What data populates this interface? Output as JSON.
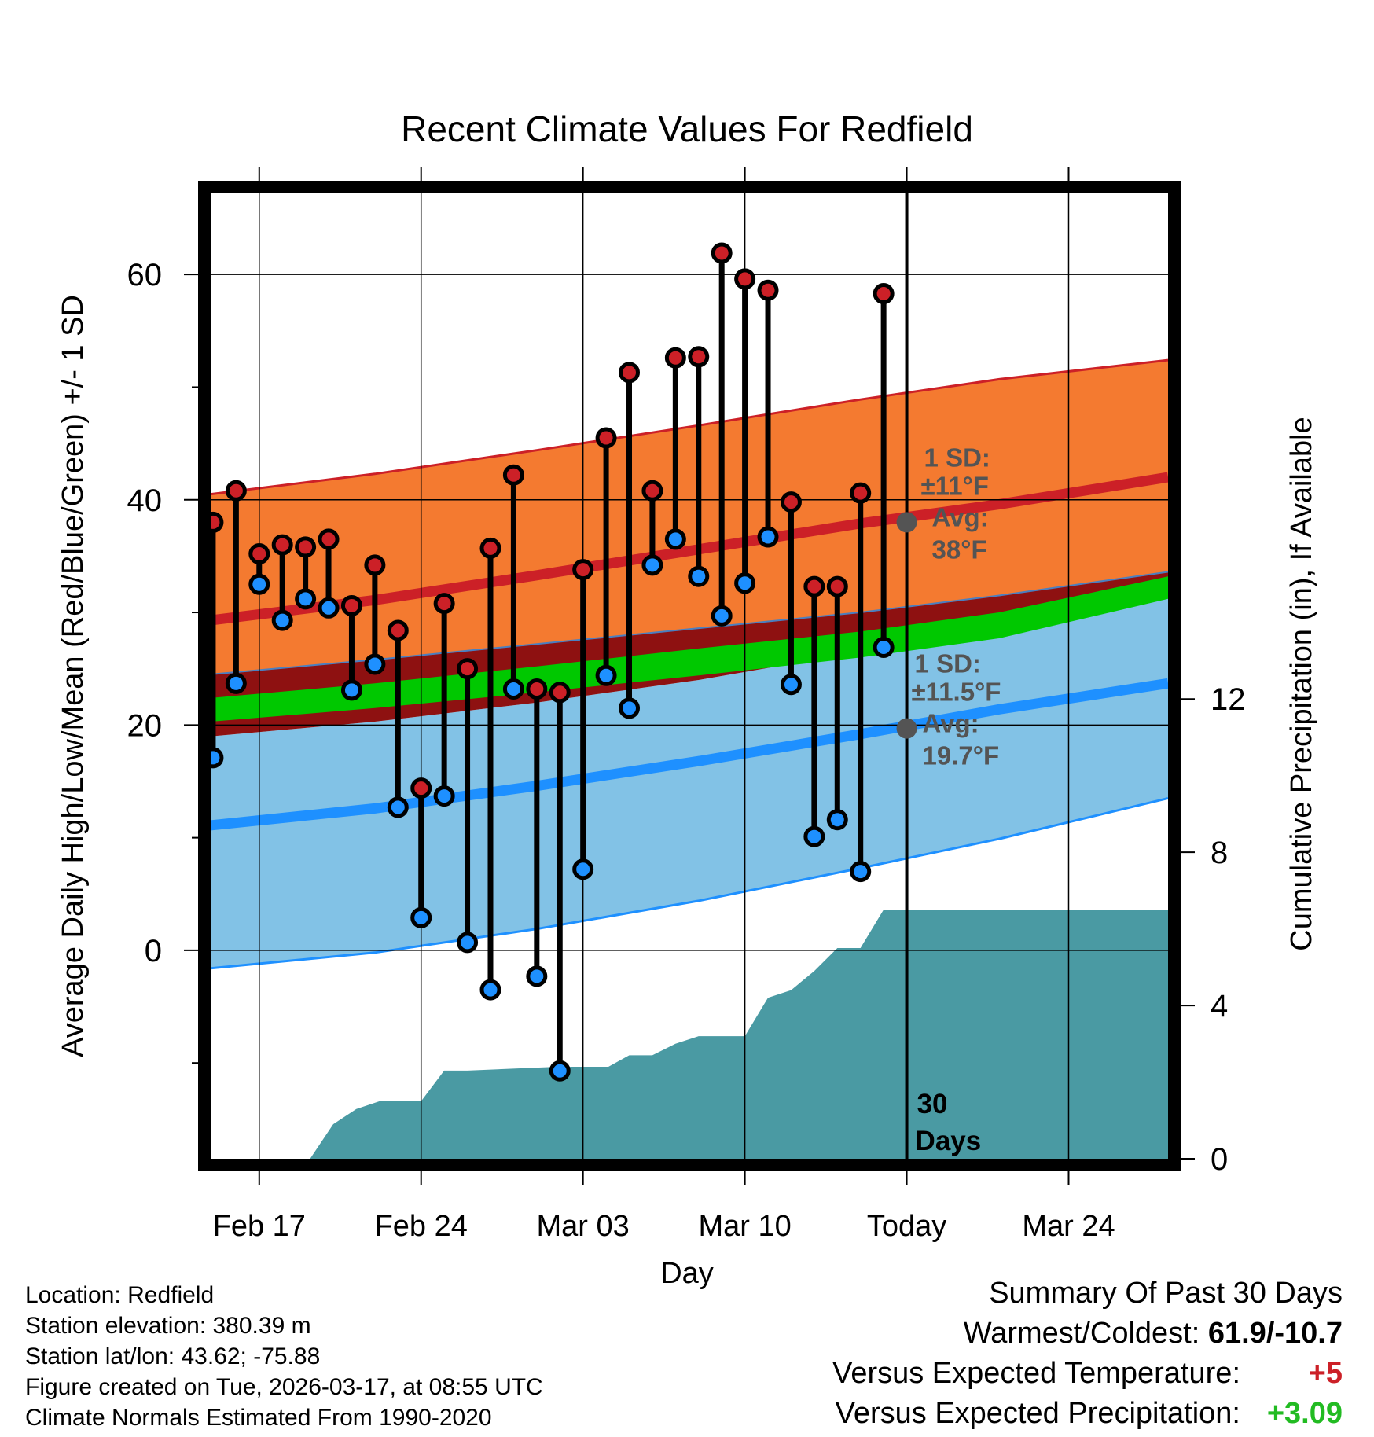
{
  "chart_data": {
    "type": "range-dot",
    "title": "Recent Climate Values For Redfield",
    "xlabel": "Day",
    "ylabel": "Average Daily High/Low/Mean (Red/Blue/Green) +/- 1 SD",
    "y2label": "Cumulative Precipitation (in), If Available",
    "xlim": [
      -2.1,
      39.3
    ],
    "ylim": [
      -18.5,
      67.2
    ],
    "y2lim": [
      0,
      25.2
    ],
    "xticks": [
      {
        "x": 0,
        "label": "Feb 17"
      },
      {
        "x": 7,
        "label": "Feb 24"
      },
      {
        "x": 14,
        "label": "Mar 03"
      },
      {
        "x": 21,
        "label": "Mar 10"
      },
      {
        "x": 28,
        "label": "Today"
      },
      {
        "x": 35,
        "label": "Mar 24"
      }
    ],
    "yticks": [
      0,
      20,
      40,
      60
    ],
    "y2ticks": [
      0,
      4,
      8,
      12
    ],
    "days": [
      -2,
      -1,
      0,
      1,
      2,
      3,
      4,
      5,
      6,
      7,
      8,
      9,
      10,
      11,
      12,
      13,
      14,
      15,
      16,
      17,
      18,
      19,
      20,
      21,
      22,
      23,
      24,
      25,
      26,
      27
    ],
    "highs": [
      38,
      40.8,
      35.2,
      36,
      35.8,
      36.5,
      30.6,
      34.2,
      28.4,
      14.4,
      30.8,
      25,
      35.7,
      42.2,
      23.2,
      22.9,
      33.8,
      45.5,
      51.3,
      40.8,
      52.6,
      52.7,
      61.9,
      59.6,
      58.6,
      39.8,
      32.3,
      32.3,
      40.6,
      58.3
    ],
    "lows": [
      17.1,
      23.7,
      32.5,
      29.3,
      31.2,
      30.4,
      23.1,
      25.4,
      12.7,
      2.9,
      13.7,
      0.7,
      -3.5,
      23.2,
      -2.3,
      -10.7,
      7.2,
      24.4,
      21.5,
      34.2,
      36.5,
      33.2,
      29.7,
      32.6,
      36.7,
      23.6,
      10.1,
      11.6,
      7.0,
      26.9
    ],
    "normals": {
      "x": [
        -2.1,
        5,
        12,
        19,
        26,
        32,
        39.3
      ],
      "high_mean": [
        29.3,
        31.1,
        33.3,
        35.6,
        37.9,
        39.6,
        42
      ],
      "high_upper": [
        40.5,
        42.3,
        44.4,
        46.6,
        48.9,
        50.7,
        52.4
      ],
      "high_lower": [
        24.5,
        25.8,
        27.2,
        28.6,
        30.0,
        31.5,
        33.6
      ],
      "mean_upper": [
        22.4,
        23.7,
        25.2,
        26.8,
        28.3,
        30.0,
        33.2
      ],
      "mean_lower": [
        20.3,
        21.5,
        22.9,
        24.4,
        26.0,
        27.7,
        31.2
      ],
      "low_upper": [
        19.0,
        20.3,
        22.0,
        24.0,
        26.5,
        28.8,
        31.3
      ],
      "low_mean": [
        11.1,
        12.6,
        14.6,
        16.8,
        19.2,
        21.4,
        23.7
      ],
      "low_lower": [
        -1.6,
        -0.2,
        1.9,
        4.4,
        7.3,
        9.9,
        13.5
      ]
    },
    "precip": {
      "x": [
        -2.1,
        2.2,
        3.2,
        4.2,
        5.2,
        6.1,
        7,
        8,
        9,
        12.9,
        14,
        15.1,
        16,
        17,
        18,
        19,
        20,
        21,
        22,
        23,
        24,
        25,
        26,
        27,
        39.3
      ],
      "y": [
        0,
        0,
        0.9,
        1.3,
        1.5,
        1.5,
        1.5,
        2.3,
        2.3,
        2.4,
        2.4,
        2.4,
        2.7,
        2.7,
        3.0,
        3.2,
        3.2,
        3.2,
        4.2,
        4.4,
        4.9,
        5.5,
        5.5,
        6.5,
        6.5
      ]
    },
    "today_x": 28,
    "today_marker_label": [
      "30",
      "Days"
    ],
    "high_normal_today": 38.0,
    "low_normal_today": 19.7,
    "high_sd_label": [
      "1 SD:",
      "±11°F",
      "Avg:",
      "38°F"
    ],
    "low_sd_label": [
      "1 SD:",
      "±11.5°F",
      "Avg:",
      "19.7°F"
    ]
  },
  "colors": {
    "high": "#cc2027",
    "low": "#1e90ff",
    "high_band": "#f47a30",
    "low_band": "#82c2e6",
    "overlap": "#8e1111",
    "mean_band": "#00c800",
    "precip": "#4a9aa3",
    "annot": "#545454",
    "positive_temp": "#cc2027",
    "positive_precip": "#22bb22"
  },
  "info": {
    "location": "Location: Redfield",
    "elevation": "Station elevation: 380.39 m",
    "latlon": "Station lat/lon: 43.62; -75.88",
    "created": "Figure created on Tue, 2026-03-17, at 08:55 UTC",
    "normals": "Climate Normals Estimated From 1990-2020"
  },
  "summary": {
    "title": "Summary Of Past 30 Days",
    "warm_cold_label": "Warmest/Coldest: ",
    "warm_cold_value": "61.9/-10.7",
    "temp_label": "Versus Expected Temperature:",
    "temp_value": "+5",
    "precip_label": "Versus Expected Precipitation:",
    "precip_value": "+3.09"
  }
}
